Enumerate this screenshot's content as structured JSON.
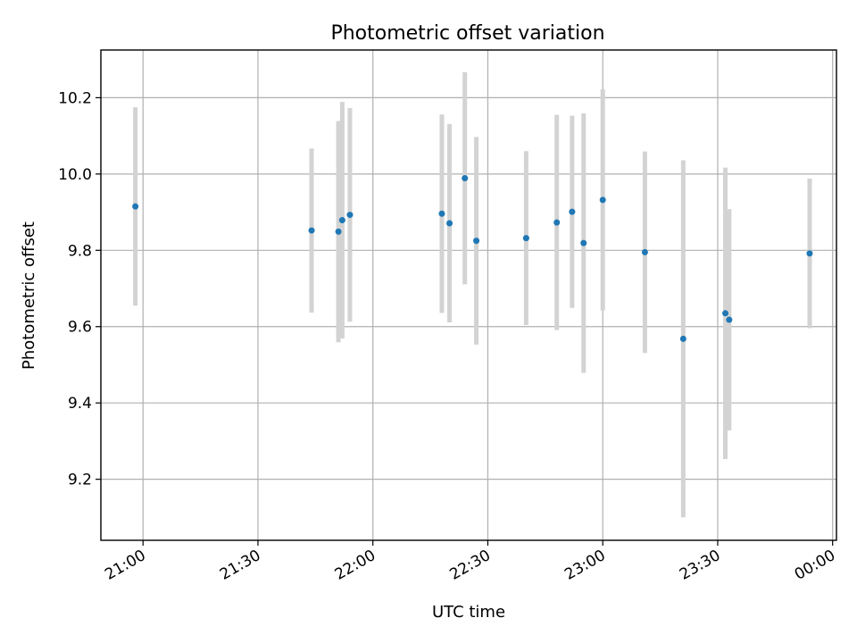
{
  "chart_data": {
    "type": "scatter",
    "title": "Photometric offset variation",
    "xlabel": "UTC time",
    "ylabel": "Photometric offset",
    "grid": true,
    "x_ticks": [
      "21:00",
      "21:30",
      "22:00",
      "22:30",
      "23:00",
      "23:30",
      "00:00"
    ],
    "y_ticks": [
      "9.2",
      "9.4",
      "9.6",
      "9.8",
      "10.0",
      "10.2"
    ],
    "xlim": [
      "20:49",
      "00:01"
    ],
    "ylim": [
      9.04,
      10.325
    ],
    "colors": {
      "point": "#1f77b4",
      "errorbar": "#d3d3d3",
      "grid": "#b0b0b0"
    },
    "points": [
      {
        "x": "20:58",
        "y": 9.915,
        "err": 0.26
      },
      {
        "x": "21:44",
        "y": 9.852,
        "err": 0.215
      },
      {
        "x": "21:51",
        "y": 9.849,
        "err": 0.29
      },
      {
        "x": "21:52",
        "y": 9.879,
        "err": 0.31
      },
      {
        "x": "21:54",
        "y": 9.893,
        "err": 0.28
      },
      {
        "x": "22:18",
        "y": 9.896,
        "err": 0.26
      },
      {
        "x": "22:20",
        "y": 9.871,
        "err": 0.26
      },
      {
        "x": "22:24",
        "y": 9.989,
        "err": 0.278
      },
      {
        "x": "22:27",
        "y": 9.825,
        "err": 0.272
      },
      {
        "x": "22:40",
        "y": 9.832,
        "err": 0.228
      },
      {
        "x": "22:48",
        "y": 9.873,
        "err": 0.282
      },
      {
        "x": "22:52",
        "y": 9.901,
        "err": 0.252
      },
      {
        "x": "22:55",
        "y": 9.819,
        "err": 0.34
      },
      {
        "x": "23:00",
        "y": 9.932,
        "err": 0.29
      },
      {
        "x": "23:11",
        "y": 9.795,
        "err": 0.264
      },
      {
        "x": "23:21",
        "y": 9.568,
        "err": 0.468
      },
      {
        "x": "23:32",
        "y": 9.635,
        "err": 0.382
      },
      {
        "x": "23:33",
        "y": 9.618,
        "err": 0.29
      },
      {
        "x": "23:54",
        "y": 9.792,
        "err": 0.196
      }
    ]
  }
}
